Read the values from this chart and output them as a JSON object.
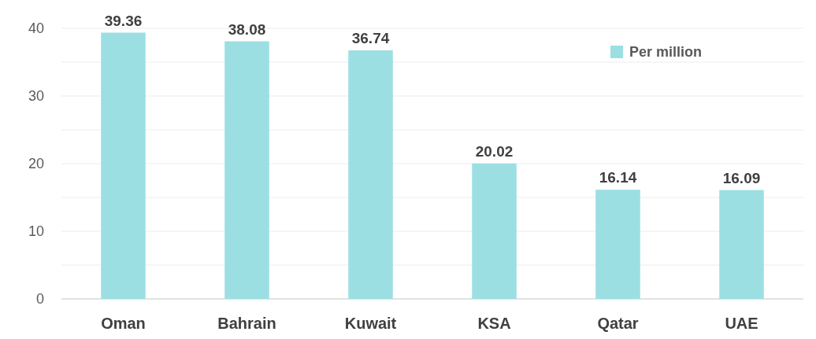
{
  "chart_data": {
    "type": "bar",
    "categories": [
      "Oman",
      "Bahrain",
      "Kuwait",
      "KSA",
      "Qatar",
      "UAE"
    ],
    "series": [
      {
        "name": "Per million",
        "color": "#9bdfe3",
        "values": [
          39.36,
          38.08,
          36.74,
          20.02,
          16.14,
          16.09
        ]
      }
    ],
    "ylim": [
      0,
      40
    ],
    "yticks": [
      0,
      {
        "value": 5,
        "label": null
      },
      10,
      {
        "value": 15,
        "label": null
      },
      20,
      {
        "value": 25,
        "label": null
      },
      30,
      {
        "value": 35,
        "label": null
      },
      40
    ],
    "grid": "y",
    "legend": "top right",
    "data_labels": true
  }
}
